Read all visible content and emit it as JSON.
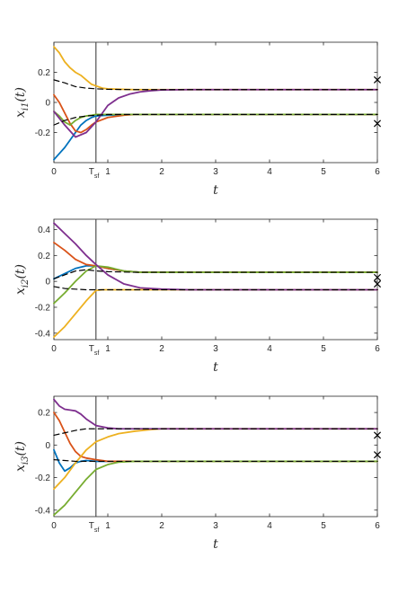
{
  "colors": {
    "blue": "#0072BD",
    "red": "#D95319",
    "yellow": "#EDB120",
    "purple": "#7E2F8E",
    "green": "#77AC30",
    "black": "#000000",
    "vline": "#404040",
    "axes": "#262626"
  },
  "tsf_label": {
    "main": "T",
    "sub": "sf"
  },
  "chart_data": [
    {
      "type": "line",
      "ylabel": "x_{i1}(t)",
      "ylabel_main": "x",
      "ylabel_sub": "i1",
      "ylabel_arg": "(t)",
      "xlabel": "t",
      "xlim": [
        0,
        6
      ],
      "ylim": [
        -0.4,
        0.4
      ],
      "xticks": [
        0,
        1,
        2,
        3,
        4,
        5,
        6
      ],
      "xtick_labels": [
        "0",
        "1",
        "2",
        "3",
        "4",
        "5",
        "6"
      ],
      "yticks": [
        -0.2,
        0,
        0.2
      ],
      "ytick_labels": [
        "-0.2",
        "0",
        "0.2"
      ],
      "vline_x": 0.78,
      "series": [
        {
          "color": "blue",
          "style": "solid",
          "x": [
            0,
            0.1,
            0.2,
            0.3,
            0.4,
            0.5,
            0.6,
            0.7,
            0.78,
            1.0,
            1.5,
            2,
            3,
            6
          ],
          "y": [
            -0.38,
            -0.34,
            -0.3,
            -0.25,
            -0.2,
            -0.15,
            -0.12,
            -0.1,
            -0.09,
            -0.085,
            -0.08,
            -0.08,
            -0.08,
            -0.08
          ]
        },
        {
          "color": "red",
          "style": "solid",
          "x": [
            0,
            0.1,
            0.2,
            0.3,
            0.4,
            0.5,
            0.6,
            0.7,
            0.78,
            1.0,
            1.3,
            1.5,
            2,
            6
          ],
          "y": [
            0.05,
            0.0,
            -0.07,
            -0.14,
            -0.19,
            -0.2,
            -0.18,
            -0.15,
            -0.13,
            -0.1,
            -0.085,
            -0.08,
            -0.08,
            -0.08
          ]
        },
        {
          "color": "green",
          "style": "solid",
          "x": [
            0,
            0.1,
            0.2,
            0.3,
            0.4,
            0.5,
            0.6,
            0.7,
            0.78,
            1.0,
            1.5,
            2,
            6
          ],
          "y": [
            -0.06,
            -0.09,
            -0.13,
            -0.15,
            -0.12,
            -0.1,
            -0.09,
            -0.085,
            -0.08,
            -0.08,
            -0.08,
            -0.08,
            -0.08
          ]
        },
        {
          "color": "yellow",
          "style": "solid",
          "x": [
            0,
            0.1,
            0.2,
            0.3,
            0.4,
            0.5,
            0.6,
            0.7,
            0.78,
            0.9,
            1.0,
            1.5,
            2,
            6
          ],
          "y": [
            0.37,
            0.33,
            0.27,
            0.23,
            0.2,
            0.18,
            0.15,
            0.12,
            0.11,
            0.095,
            0.09,
            0.085,
            0.085,
            0.085
          ]
        },
        {
          "color": "purple",
          "style": "solid",
          "x": [
            0,
            0.2,
            0.4,
            0.6,
            0.78,
            0.9,
            1.0,
            1.2,
            1.4,
            1.6,
            1.8,
            2.0,
            2.5,
            3,
            6
          ],
          "y": [
            -0.06,
            -0.15,
            -0.23,
            -0.2,
            -0.13,
            -0.07,
            -0.02,
            0.03,
            0.055,
            0.07,
            0.078,
            0.083,
            0.085,
            0.085,
            0.085
          ]
        },
        {
          "color": "black",
          "style": "dashed",
          "x": [
            0,
            0.2,
            0.4,
            0.6,
            0.8,
            1.0,
            1.5,
            2,
            3,
            6
          ],
          "y": [
            0.15,
            0.13,
            0.105,
            0.095,
            0.09,
            0.087,
            0.085,
            0.085,
            0.085,
            0.085
          ]
        },
        {
          "color": "black",
          "style": "dashed",
          "x": [
            0,
            0.2,
            0.4,
            0.6,
            0.8,
            1.0,
            1.5,
            2,
            3,
            6
          ],
          "y": [
            -0.15,
            -0.12,
            -0.1,
            -0.09,
            -0.085,
            -0.08,
            -0.08,
            -0.08,
            -0.08,
            -0.08
          ]
        }
      ],
      "markers": [
        {
          "x": 6,
          "y": 0.15
        },
        {
          "x": 6,
          "y": -0.14
        }
      ]
    },
    {
      "type": "line",
      "ylabel": "x_{i2}(t)",
      "ylabel_main": "x",
      "ylabel_sub": "i2",
      "ylabel_arg": "(t)",
      "xlabel": "t",
      "xlim": [
        0,
        6
      ],
      "ylim": [
        -0.45,
        0.48
      ],
      "xticks": [
        0,
        1,
        2,
        3,
        4,
        5,
        6
      ],
      "xtick_labels": [
        "0",
        "1",
        "2",
        "3",
        "4",
        "5",
        "6"
      ],
      "yticks": [
        -0.4,
        -0.2,
        0,
        0.2,
        0.4
      ],
      "ytick_labels": [
        "-0.4",
        "-0.2",
        "0",
        "0.2",
        "0.4"
      ],
      "vline_x": 0.78,
      "series": [
        {
          "color": "blue",
          "style": "solid",
          "x": [
            0,
            0.2,
            0.4,
            0.6,
            0.78,
            1.0,
            1.3,
            1.6,
            2,
            6
          ],
          "y": [
            0.02,
            0.06,
            0.1,
            0.12,
            0.12,
            0.1,
            0.08,
            0.07,
            0.07,
            0.07
          ]
        },
        {
          "color": "red",
          "style": "solid",
          "x": [
            0,
            0.2,
            0.4,
            0.6,
            0.78,
            1.0,
            1.3,
            1.6,
            2,
            6
          ],
          "y": [
            0.3,
            0.24,
            0.17,
            0.13,
            0.12,
            0.1,
            0.08,
            0.07,
            0.07,
            0.07
          ]
        },
        {
          "color": "green",
          "style": "solid",
          "x": [
            0,
            0.2,
            0.4,
            0.6,
            0.78,
            1.0,
            1.3,
            1.6,
            2,
            6
          ],
          "y": [
            -0.17,
            -0.09,
            0.0,
            0.08,
            0.12,
            0.11,
            0.08,
            0.07,
            0.07,
            0.07
          ]
        },
        {
          "color": "yellow",
          "style": "solid",
          "x": [
            0,
            0.2,
            0.4,
            0.6,
            0.78,
            0.9,
            1.0,
            1.5,
            2,
            6
          ],
          "y": [
            -0.43,
            -0.35,
            -0.25,
            -0.15,
            -0.07,
            -0.065,
            -0.065,
            -0.065,
            -0.065,
            -0.065
          ]
        },
        {
          "color": "purple",
          "style": "solid",
          "x": [
            0,
            0.2,
            0.4,
            0.6,
            0.78,
            1.0,
            1.3,
            1.6,
            2.0,
            2.5,
            6
          ],
          "y": [
            0.45,
            0.37,
            0.29,
            0.2,
            0.13,
            0.05,
            -0.02,
            -0.05,
            -0.06,
            -0.065,
            -0.065
          ]
        },
        {
          "color": "black",
          "style": "dashed",
          "x": [
            0,
            0.2,
            0.4,
            0.6,
            0.8,
            1.0,
            1.5,
            2,
            6
          ],
          "y": [
            0.02,
            0.05,
            0.08,
            0.09,
            0.08,
            0.075,
            0.07,
            0.07,
            0.07
          ]
        },
        {
          "color": "black",
          "style": "dashed",
          "x": [
            0,
            0.2,
            0.4,
            0.6,
            0.8,
            1.0,
            1.5,
            2,
            6
          ],
          "y": [
            -0.04,
            -0.055,
            -0.06,
            -0.065,
            -0.065,
            -0.065,
            -0.065,
            -0.065,
            -0.065
          ]
        }
      ],
      "markers": [
        {
          "x": 6,
          "y": 0.03
        },
        {
          "x": 6,
          "y": -0.02
        }
      ]
    },
    {
      "type": "line",
      "ylabel": "x_{i3}(t)",
      "ylabel_main": "x",
      "ylabel_sub": "i3",
      "ylabel_arg": "(t)",
      "xlabel": "t",
      "xlim": [
        0,
        6
      ],
      "ylim": [
        -0.44,
        0.3
      ],
      "xticks": [
        0,
        1,
        2,
        3,
        4,
        5,
        6
      ],
      "xtick_labels": [
        "0",
        "1",
        "2",
        "3",
        "4",
        "5",
        "6"
      ],
      "yticks": [
        -0.4,
        -0.2,
        0,
        0.2
      ],
      "ytick_labels": [
        "-0.4",
        "-0.2",
        "0",
        "0.2"
      ],
      "vline_x": 0.78,
      "series": [
        {
          "color": "blue",
          "style": "solid",
          "x": [
            0,
            0.1,
            0.2,
            0.3,
            0.4,
            0.5,
            0.6,
            0.78,
            1.0,
            1.5,
            2,
            6
          ],
          "y": [
            -0.03,
            -0.11,
            -0.16,
            -0.14,
            -0.11,
            -0.1,
            -0.095,
            -0.1,
            -0.1,
            -0.1,
            -0.1,
            -0.1
          ]
        },
        {
          "color": "red",
          "style": "solid",
          "x": [
            0,
            0.1,
            0.2,
            0.3,
            0.4,
            0.5,
            0.6,
            0.78,
            1.0,
            1.5,
            2,
            6
          ],
          "y": [
            0.2,
            0.15,
            0.08,
            0.01,
            -0.04,
            -0.07,
            -0.08,
            -0.09,
            -0.1,
            -0.1,
            -0.1,
            -0.1
          ]
        },
        {
          "color": "green",
          "style": "solid",
          "x": [
            0,
            0.2,
            0.4,
            0.6,
            0.78,
            1.0,
            1.2,
            1.5,
            2,
            6
          ],
          "y": [
            -0.43,
            -0.37,
            -0.29,
            -0.21,
            -0.15,
            -0.12,
            -0.105,
            -0.1,
            -0.1,
            -0.1
          ]
        },
        {
          "color": "yellow",
          "style": "solid",
          "x": [
            0,
            0.2,
            0.4,
            0.6,
            0.78,
            1.0,
            1.2,
            1.5,
            1.8,
            2.0,
            2.5,
            6
          ],
          "y": [
            -0.27,
            -0.2,
            -0.11,
            -0.03,
            0.02,
            0.05,
            0.07,
            0.085,
            0.095,
            0.1,
            0.1,
            0.1
          ]
        },
        {
          "color": "purple",
          "style": "solid",
          "x": [
            0,
            0.1,
            0.2,
            0.3,
            0.4,
            0.5,
            0.6,
            0.78,
            1.0,
            1.2,
            1.5,
            2,
            6
          ],
          "y": [
            0.28,
            0.24,
            0.22,
            0.215,
            0.21,
            0.19,
            0.16,
            0.12,
            0.105,
            0.1,
            0.1,
            0.1,
            0.1
          ]
        },
        {
          "color": "black",
          "style": "dashed",
          "x": [
            0,
            0.2,
            0.4,
            0.6,
            0.8,
            1.0,
            1.5,
            2,
            6
          ],
          "y": [
            0.06,
            0.075,
            0.09,
            0.1,
            0.1,
            0.1,
            0.1,
            0.1,
            0.1
          ]
        },
        {
          "color": "black",
          "style": "dashed",
          "x": [
            0,
            0.2,
            0.4,
            0.6,
            0.8,
            1.0,
            1.5,
            2,
            6
          ],
          "y": [
            -0.09,
            -0.095,
            -0.1,
            -0.1,
            -0.1,
            -0.1,
            -0.1,
            -0.1,
            -0.1
          ]
        }
      ],
      "markers": [
        {
          "x": 6,
          "y": 0.06
        },
        {
          "x": 6,
          "y": -0.06
        }
      ]
    }
  ]
}
